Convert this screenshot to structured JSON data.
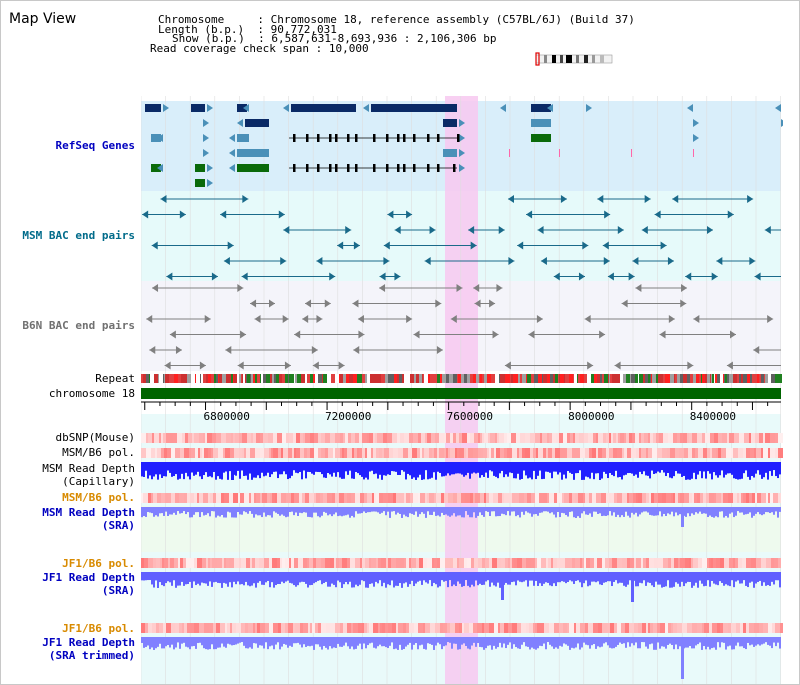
{
  "page_title": "Map View",
  "header": {
    "chromosome_key": "Chromosome",
    "chromosome_value": "Chromosome 18, reference assembly (C57BL/6J) (Build 37)",
    "length_key": "Length (b.p.)",
    "length_value": "90,772,031",
    "show_key": "Show (b.p.)",
    "show_value": "6,587,631-8,693,936 : 2,106,306 bp",
    "span_key": "Read coverage check span",
    "span_value": "10,000"
  },
  "tracks": {
    "refseq": "RefSeq Genes",
    "msm_bac": "MSM BAC end pairs",
    "b6n_bac": "B6N BAC end pairs",
    "repeat": "Repeat",
    "chromosome": "chromosome 18",
    "dbsnp": "dbSNP(Mouse)",
    "msm_pol": "MSM/B6 pol.",
    "msm_depth_cap_1": "MSM Read Depth",
    "msm_depth_cap_2": "(Capillary)",
    "msm_pol_sra": "MSM/B6 pol.",
    "msm_depth_sra_1": "MSM Read Depth",
    "msm_depth_sra_2": "(SRA)",
    "jf1_pol": "JF1/B6 pol.",
    "jf1_depth_sra_1": "JF1 Read Depth",
    "jf1_depth_sra_2": "(SRA)",
    "jf1_pol_2": "JF1/B6 pol.",
    "jf1_depth_trim_1": "JF1 Read Depth",
    "jf1_depth_trim_2": "(SRA trimmed)"
  },
  "axis": {
    "view_start": 6587631,
    "view_end": 8693936,
    "ticks": [
      "6800000",
      "7200000",
      "7600000",
      "8000000",
      "8400000"
    ]
  },
  "colors": {
    "refseq_bg": "#d9eefa",
    "bac_bg": "#e6fafa",
    "b6n_bg": "#f4f4fa",
    "highlight": "#f7c8f0",
    "chrom_bar": "#006400",
    "gene_dark": "#0a2a66",
    "gene_teal": "#4a90b8",
    "gene_green": "#0a6a0a",
    "msm_label": "#006b8a",
    "b6n_label": "#707070",
    "pol_label": "#d88a00",
    "depth_label": "#0000c0"
  }
}
